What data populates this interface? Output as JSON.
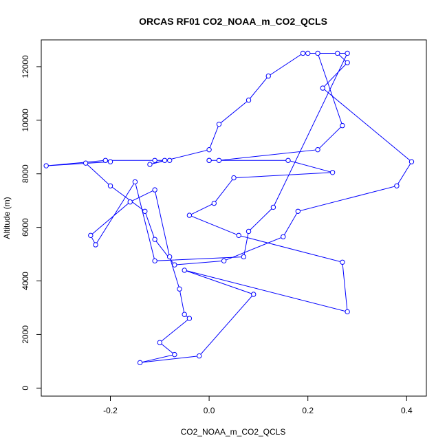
{
  "chart_data": {
    "type": "line",
    "title": "ORCAS RF01 CO2_NOAA_m_CO2_QCLS",
    "xlabel": "CO2_NOAA_m_CO2_QCLS",
    "ylabel": "Altitude (m)",
    "xlim": [
      -0.34,
      0.44
    ],
    "ylim": [
      -300,
      13000
    ],
    "xticks": [
      -0.2,
      0.0,
      0.2,
      0.4
    ],
    "xtick_labels": [
      "-0.2",
      "0.0",
      "0.2",
      "0.4"
    ],
    "yticks": [
      0,
      2000,
      4000,
      6000,
      8000,
      10000,
      12000
    ],
    "ytick_labels": [
      "0",
      "2000",
      "4000",
      "6000",
      "8000",
      "10000",
      "12000"
    ],
    "grid": false,
    "series": [
      {
        "color": "#0000ff",
        "marker": "open-circle",
        "x": [
          0.2,
          0.26,
          0.28,
          0.23,
          0.41,
          0.38,
          0.18,
          0.15,
          0.03,
          -0.07,
          -0.11,
          -0.13,
          -0.2,
          -0.25,
          -0.2,
          -0.33,
          -0.21,
          -0.11,
          -0.08,
          -0.09,
          -0.12,
          0.0,
          0.02,
          0.08,
          0.12,
          0.19,
          0.28,
          0.13,
          0.08,
          0.07,
          -0.11,
          -0.15,
          -0.23,
          -0.24,
          -0.16,
          -0.11,
          -0.08,
          -0.06,
          -0.05,
          -0.04,
          -0.1,
          -0.07,
          -0.14,
          -0.02,
          0.09,
          -0.05,
          0.28,
          0.27,
          0.06,
          -0.04,
          0.01,
          0.05,
          0.25,
          0.16,
          0.0,
          0.0,
          0.02,
          0.22,
          0.27,
          0.22
        ],
        "y": [
          12500,
          12500,
          12150,
          11200,
          8450,
          7550,
          6600,
          5650,
          4750,
          4600,
          5550,
          6600,
          7550,
          8400,
          8450,
          8300,
          8500,
          8500,
          8500,
          8500,
          8350,
          8900,
          9850,
          10750,
          11650,
          12500,
          12500,
          6750,
          5850,
          4900,
          4750,
          7700,
          5350,
          5700,
          6950,
          7400,
          4900,
          3700,
          2750,
          2600,
          1700,
          1250,
          950,
          1200,
          3500,
          4400,
          2850,
          4700,
          5700,
          6450,
          6900,
          7850,
          8050,
          8500,
          8500,
          8500,
          8500,
          8900,
          9800,
          12500
        ]
      }
    ]
  }
}
